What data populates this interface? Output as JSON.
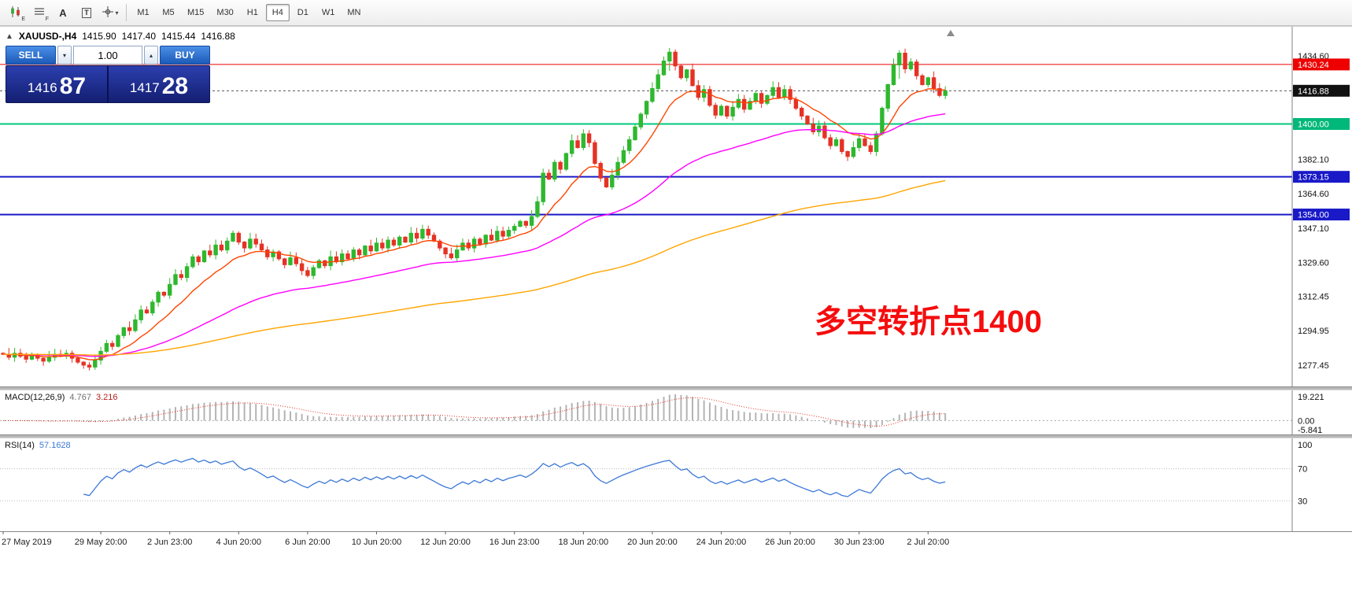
{
  "toolbar": {
    "tools": [
      {
        "name": "chart-type",
        "icon": "candles",
        "sub": "E"
      },
      {
        "name": "grid",
        "icon": "grid",
        "sub": "F"
      },
      {
        "name": "text-label",
        "glyph": "A"
      },
      {
        "name": "text-box",
        "glyph": "T",
        "boxed": true
      },
      {
        "name": "crosshair",
        "icon": "cursor",
        "caret": true
      }
    ],
    "timeframes": [
      "M1",
      "M5",
      "M15",
      "M30",
      "H1",
      "H4",
      "D1",
      "W1",
      "MN"
    ],
    "active_timeframe": "H4"
  },
  "chart": {
    "symbol_header": {
      "symbol": "XAUUSD-,H4",
      "open": "1415.90",
      "high": "1417.40",
      "low": "1415.44",
      "close": "1416.88"
    },
    "trade_panel": {
      "sell_label": "SELL",
      "buy_label": "BUY",
      "volume": "1.00",
      "sell_price_main": "1416",
      "sell_price_pips": "87",
      "buy_price_main": "1417",
      "buy_price_pips": "28"
    },
    "annotation": {
      "text": "多空转折点1400",
      "color": "#f50d0d"
    },
    "current_price": 1416.88,
    "axis": {
      "ticks": [
        "1434.60",
        "1382.10",
        "1364.60",
        "1347.10",
        "1329.60",
        "1312.45",
        "1294.95",
        "1277.45"
      ],
      "badges": [
        {
          "value": "1430.24",
          "color": "#ee0000",
          "text": "#ffffff"
        },
        {
          "value": "1416.88",
          "color": "#111111",
          "text": "#ffffff"
        },
        {
          "value": "1400.00",
          "color": "#00b87a",
          "text": "#ffffff"
        },
        {
          "value": "1373.15",
          "color": "#1919c8",
          "text": "#ffffff"
        },
        {
          "value": "1354.00",
          "color": "#1919c8",
          "text": "#ffffff"
        }
      ]
    },
    "hlines": [
      {
        "price": 1430.24,
        "color": "#ee0000",
        "width": 1
      },
      {
        "price": 1400.0,
        "color": "#00c97e",
        "width": 2
      },
      {
        "price": 1373.15,
        "color": "#1919c8",
        "width": 2
      },
      {
        "price": 1354.0,
        "color": "#1919c8",
        "width": 2
      }
    ]
  },
  "chart_data": {
    "type": "candlestick",
    "symbol": "XAUUSD",
    "timeframe": "H4",
    "title": "XAUUSD-,H4",
    "ohlc_last": [
      1415.9,
      1417.4,
      1415.44,
      1416.88
    ],
    "first_open": 1283.5,
    "closes": [
      1283.0,
      1281.5,
      1283.5,
      1282.0,
      1280.5,
      1282.5,
      1281.0,
      1279.5,
      1281.5,
      1283.0,
      1282.0,
      1283.5,
      1281.0,
      1279.0,
      1277.5,
      1276.5,
      1280.0,
      1284.5,
      1288.5,
      1287.0,
      1292.5,
      1296.5,
      1295.0,
      1300.5,
      1305.5,
      1304.0,
      1309.5,
      1314.5,
      1313.0,
      1318.5,
      1323.5,
      1322.0,
      1327.5,
      1332.5,
      1330.0,
      1335.5,
      1333.5,
      1338.5,
      1336.0,
      1340.5,
      1344.5,
      1340.0,
      1337.0,
      1341.5,
      1339.0,
      1336.0,
      1332.5,
      1335.0,
      1331.5,
      1328.5,
      1332.0,
      1329.0,
      1325.5,
      1323.0,
      1327.0,
      1330.5,
      1328.0,
      1332.5,
      1330.0,
      1334.0,
      1331.5,
      1336.0,
      1333.5,
      1338.0,
      1335.5,
      1339.5,
      1337.0,
      1341.0,
      1338.5,
      1342.5,
      1340.0,
      1344.5,
      1342.0,
      1346.5,
      1343.5,
      1340.5,
      1337.0,
      1334.0,
      1332.0,
      1336.0,
      1339.5,
      1337.0,
      1341.5,
      1339.0,
      1343.5,
      1341.0,
      1345.5,
      1343.0,
      1346.0,
      1348.0,
      1350.5,
      1348.5,
      1353.0,
      1360.5,
      1375.0,
      1372.0,
      1380.5,
      1377.0,
      1385.0,
      1391.5,
      1388.0,
      1395.0,
      1390.5,
      1380.0,
      1372.5,
      1368.0,
      1374.0,
      1380.5,
      1386.5,
      1392.0,
      1398.5,
      1405.0,
      1411.5,
      1418.0,
      1425.0,
      1432.0,
      1436.5,
      1429.5,
      1423.5,
      1427.5,
      1419.5,
      1413.5,
      1417.5,
      1409.5,
      1404.5,
      1409.0,
      1404.0,
      1408.5,
      1412.5,
      1407.5,
      1411.5,
      1415.5,
      1410.5,
      1414.5,
      1418.5,
      1413.5,
      1417.5,
      1412.5,
      1408.0,
      1404.0,
      1400.0,
      1396.0,
      1399.0,
      1393.0,
      1389.0,
      1392.0,
      1386.0,
      1383.5,
      1388.0,
      1392.5,
      1389.0,
      1386.0,
      1395.0,
      1408.0,
      1420.0,
      1430.0,
      1436.0,
      1428.0,
      1431.5,
      1424.5,
      1420.0,
      1423.5,
      1418.0,
      1414.5,
      1416.9
    ],
    "wick_overrides": {
      "15": [
        1279.0,
        1274.8
      ],
      "116": [
        1438.6,
        1427.0
      ],
      "156": [
        1437.5,
        1423.0
      ]
    },
    "colors": {
      "bull": "#2eb82e",
      "bear": "#e53225"
    },
    "moving_averages": [
      {
        "period": 12,
        "color": "#ff4500"
      },
      {
        "period": 50,
        "color": "#ff00ff"
      },
      {
        "period": 150,
        "color": "#ffa500"
      }
    ],
    "time_labels": [
      {
        "label": "27 May 2019",
        "i": 0
      },
      {
        "label": "29 May 20:00",
        "i": 17
      },
      {
        "label": "2 Jun 23:00",
        "i": 29
      },
      {
        "label": "4 Jun 20:00",
        "i": 41
      },
      {
        "label": "6 Jun 20:00",
        "i": 53
      },
      {
        "label": "10 Jun 20:00",
        "i": 65
      },
      {
        "label": "12 Jun 20:00",
        "i": 77
      },
      {
        "label": "16 Jun 23:00",
        "i": 89
      },
      {
        "label": "18 Jun 20:00",
        "i": 101
      },
      {
        "label": "20 Jun 20:00",
        "i": 113
      },
      {
        "label": "24 Jun 20:00",
        "i": 125
      },
      {
        "label": "26 Jun 20:00",
        "i": 137
      },
      {
        "label": "30 Jun 23:00",
        "i": 149
      },
      {
        "label": "2 Jul 20:00",
        "i": 161
      }
    ]
  },
  "macd": {
    "label": "MACD(12,26,9)",
    "value_main": "4.767",
    "value_signal": "3.216",
    "ticks": {
      "top": "19.221",
      "zero": "0.00",
      "bottom": "-5.841"
    }
  },
  "rsi": {
    "label": "RSI(14)",
    "value": "57.1628",
    "levels": [
      "100",
      "70",
      "30"
    ]
  }
}
